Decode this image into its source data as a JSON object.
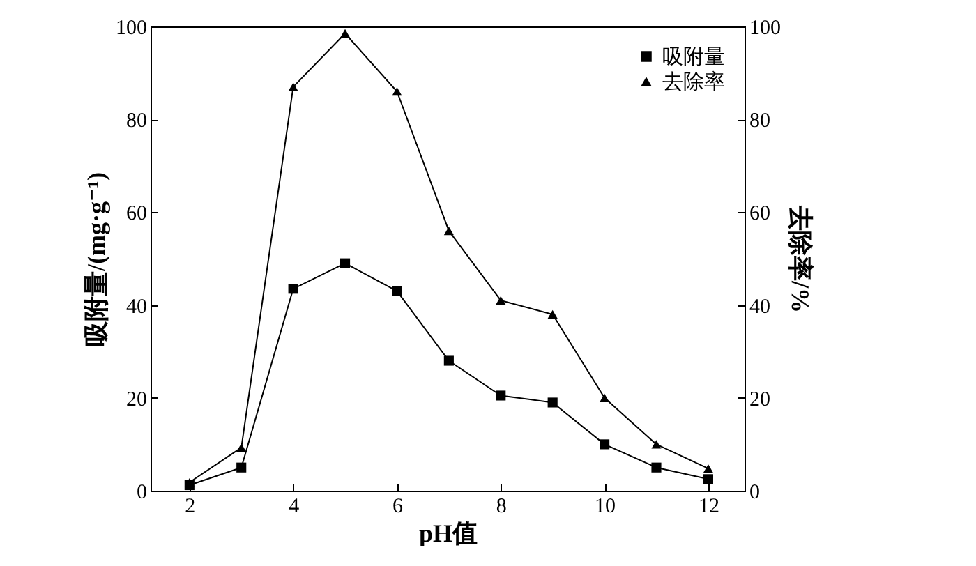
{
  "chart_data": {
    "type": "line",
    "xlabel": "pH值",
    "ylabel": "吸附量/(mg·g⁻¹)",
    "y2label": "去除率/%",
    "x": [
      2,
      3,
      4,
      5,
      6,
      7,
      8,
      9,
      10,
      11,
      12
    ],
    "series": [
      {
        "name": "吸附量",
        "color": "#000000",
        "marker": "square",
        "values": [
          1.2,
          5,
          43.5,
          49,
          43,
          28,
          20.5,
          19,
          10,
          5,
          2.5
        ]
      },
      {
        "name": "去除率",
        "color": "#000000",
        "marker": "triangle",
        "axis": "y2",
        "values": [
          1.8,
          9.3,
          87,
          98.5,
          86,
          56,
          41,
          38,
          20,
          10,
          4.8
        ]
      }
    ],
    "xlim": [
      1.25,
      12.7
    ],
    "xticks": [
      2,
      4,
      6,
      8,
      10,
      12
    ],
    "ylim": [
      0,
      100
    ],
    "yticks": [
      0,
      20,
      40,
      60,
      80,
      100
    ],
    "y2lim": [
      0,
      100
    ],
    "y2ticks": [
      0,
      20,
      40,
      60,
      80,
      100
    ],
    "legend": "top right",
    "grid": false,
    "line_style": "solid"
  }
}
